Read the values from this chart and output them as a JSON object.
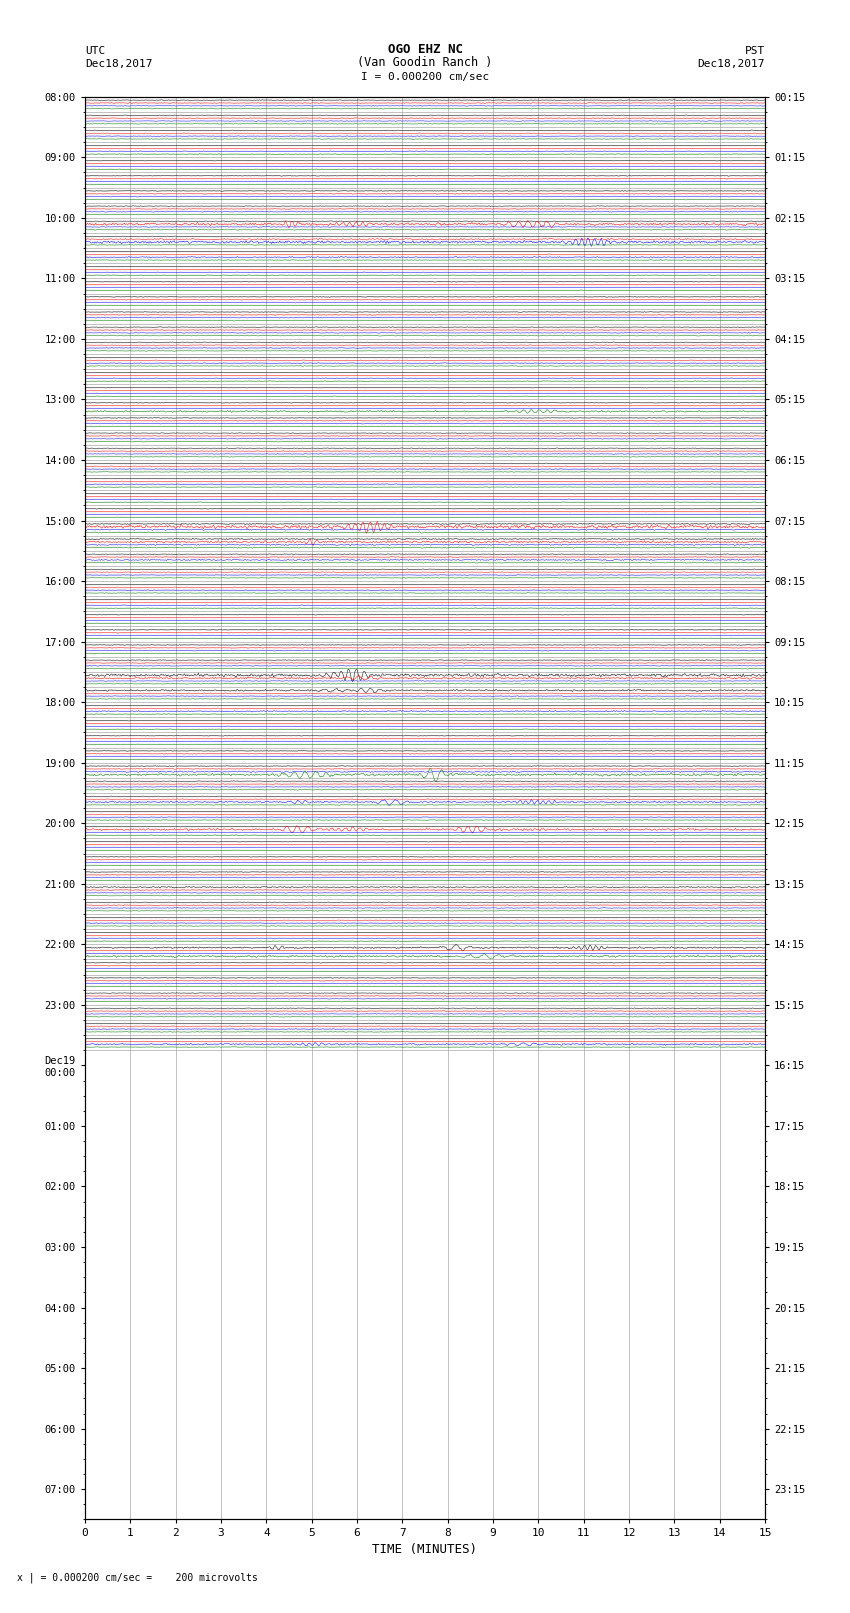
{
  "title_line1": "OGO EHZ NC",
  "title_line2": "(Van Goodin Ranch )",
  "title_line3": "I = 0.000200 cm/sec",
  "left_label1": "UTC",
  "left_label2": "Dec18,2017",
  "right_label1": "PST",
  "right_label2": "Dec18,2017",
  "xlabel": "TIME (MINUTES)",
  "footer": "x | = 0.000200 cm/sec =    200 microvolts",
  "utc_labels": [
    "08:00",
    "",
    "",
    "",
    "09:00",
    "",
    "",
    "",
    "10:00",
    "",
    "",
    "",
    "11:00",
    "",
    "",
    "",
    "12:00",
    "",
    "",
    "",
    "13:00",
    "",
    "",
    "",
    "14:00",
    "",
    "",
    "",
    "15:00",
    "",
    "",
    "",
    "16:00",
    "",
    "",
    "",
    "17:00",
    "",
    "",
    "",
    "18:00",
    "",
    "",
    "",
    "19:00",
    "",
    "",
    "",
    "20:00",
    "",
    "",
    "",
    "21:00",
    "",
    "",
    "",
    "22:00",
    "",
    "",
    "",
    "23:00",
    "",
    "",
    "",
    "Dec19\n00:00",
    "",
    "",
    "",
    "01:00",
    "",
    "",
    "",
    "02:00",
    "",
    "",
    "",
    "03:00",
    "",
    "",
    "",
    "04:00",
    "",
    "",
    "",
    "05:00",
    "",
    "",
    "",
    "06:00",
    "",
    "",
    "",
    "07:00",
    "",
    ""
  ],
  "pst_labels": [
    "00:15",
    "",
    "",
    "",
    "01:15",
    "",
    "",
    "",
    "02:15",
    "",
    "",
    "",
    "03:15",
    "",
    "",
    "",
    "04:15",
    "",
    "",
    "",
    "05:15",
    "",
    "",
    "",
    "06:15",
    "",
    "",
    "",
    "07:15",
    "",
    "",
    "",
    "08:15",
    "",
    "",
    "",
    "09:15",
    "",
    "",
    "",
    "10:15",
    "",
    "",
    "",
    "11:15",
    "",
    "",
    "",
    "12:15",
    "",
    "",
    "",
    "13:15",
    "",
    "",
    "",
    "14:15",
    "",
    "",
    "",
    "15:15",
    "",
    "",
    "",
    "16:15",
    "",
    "",
    "",
    "17:15",
    "",
    "",
    "",
    "18:15",
    "",
    "",
    "",
    "19:15",
    "",
    "",
    "",
    "20:15",
    "",
    "",
    "",
    "21:15",
    "",
    "",
    "",
    "22:15",
    "",
    "",
    "",
    "23:15",
    "",
    ""
  ],
  "num_rows": 63,
  "background_color": "#ffffff",
  "grid_color": "#999999",
  "line_colors": [
    "black",
    "red",
    "blue",
    "green"
  ],
  "xmin": 0,
  "xmax": 15,
  "xticks": [
    0,
    1,
    2,
    3,
    4,
    5,
    6,
    7,
    8,
    9,
    10,
    11,
    12,
    13,
    14,
    15
  ]
}
